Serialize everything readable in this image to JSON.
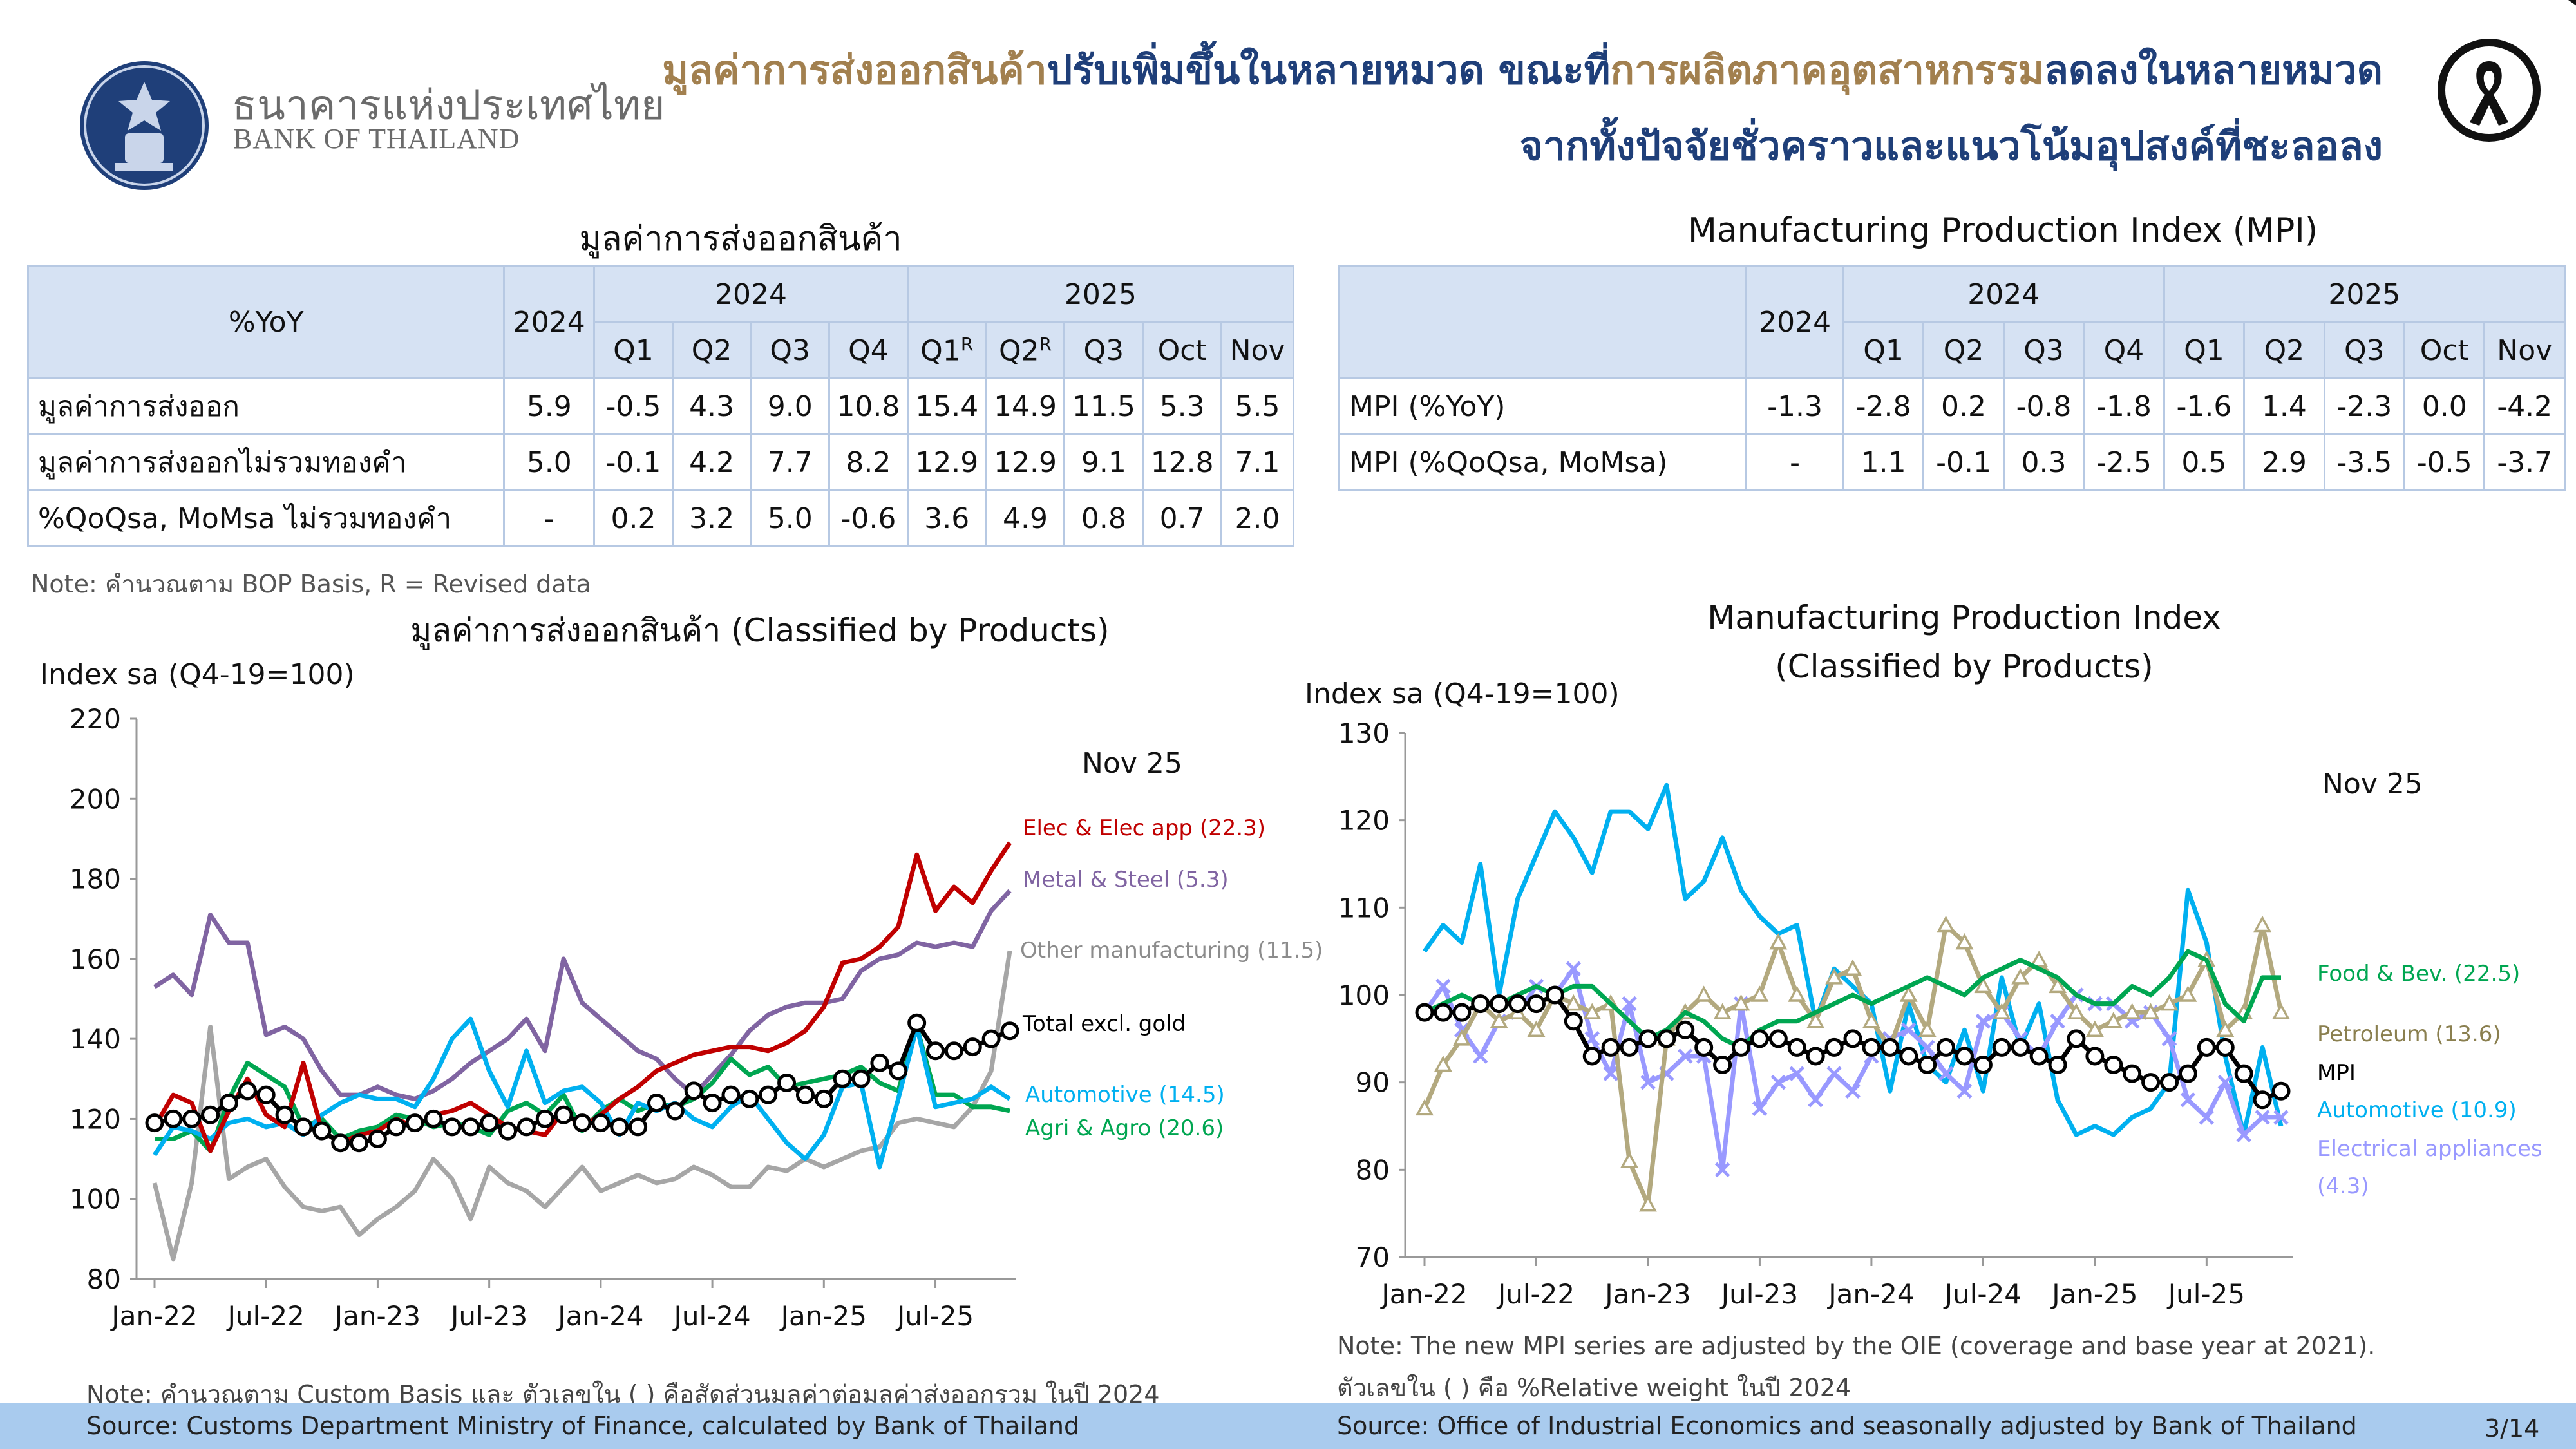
{
  "header": {
    "bank_name_th": "ธนาคารแห่งประเทศไทย",
    "bank_name_en": "BANK OF THAILAND",
    "title_line1_parts": [
      "มูลค่าการส่งออกสินค้า",
      "ปรับเพิ่มขึ้นในหลายหมวด ขณะที่",
      "การผลิตภาคอุตสาหกรรม",
      "ลดลงในหลายหมวด"
    ],
    "title_line2": "จากทั้งปัจจัยชั่วคราวและแนวโน้มอุปสงค์ที่ชะลอลง"
  },
  "export_table": {
    "title": "มูลค่าการส่งออกสินค้า",
    "corner": "%YoY",
    "year_col": "2024",
    "group_2024": "2024",
    "group_2025": "2025",
    "subheaders": [
      "Q1",
      "Q2",
      "Q3",
      "Q4",
      "Q1",
      "Q2",
      "Q3",
      "Oct",
      "Nov"
    ],
    "revised_mark": "R",
    "rows": [
      {
        "label": "มูลค่าการส่งออก",
        "values": [
          "5.9",
          "-0.5",
          "4.3",
          "9.0",
          "10.8",
          "15.4",
          "14.9",
          "11.5",
          "5.3",
          "5.5"
        ]
      },
      {
        "label": "มูลค่าการส่งออกไม่รวมทองคำ",
        "values": [
          "5.0",
          "-0.1",
          "4.2",
          "7.7",
          "8.2",
          "12.9",
          "12.9",
          "9.1",
          "12.8",
          "7.1"
        ]
      },
      {
        "label": "%QoQsa, MoMsa ไม่รวมทองคำ",
        "values": [
          "-",
          "0.2",
          "3.2",
          "5.0",
          "-0.6",
          "3.6",
          "4.9",
          "0.8",
          "0.7",
          "2.0"
        ]
      }
    ],
    "note": "Note: คำนวณตาม BOP Basis, R = Revised data"
  },
  "mpi_table": {
    "title": "Manufacturing Production Index (MPI)",
    "year_col": "2024",
    "group_2024": "2024",
    "group_2025": "2025",
    "subheaders": [
      "Q1",
      "Q2",
      "Q3",
      "Q4",
      "Q1",
      "Q2",
      "Q3",
      "Oct",
      "Nov"
    ],
    "rows": [
      {
        "label": "MPI (%YoY)",
        "values": [
          "-1.3",
          "-2.8",
          "0.2",
          "-0.8",
          "-1.8",
          "-1.6",
          "1.4",
          "-2.3",
          "0.0",
          "-4.2"
        ]
      },
      {
        "label": "MPI (%QoQsa, MoMsa)",
        "values": [
          "-",
          "1.1",
          "-0.1",
          "0.3",
          "-2.5",
          "0.5",
          "2.9",
          "-3.5",
          "-0.5",
          "-3.7"
        ]
      }
    ]
  },
  "chart_data": [
    {
      "type": "line",
      "title": "มูลค่าการส่งออกสินค้า (Classified by Products)",
      "ylabel": "Index sa (Q4-19=100)",
      "ylim": [
        80,
        220
      ],
      "yticks": [
        80,
        100,
        120,
        140,
        160,
        180,
        200,
        220
      ],
      "xticks": [
        "Jan-22",
        "Jul-22",
        "Jan-23",
        "Jul-23",
        "Jan-24",
        "Jul-24",
        "Jan-25",
        "Jul-25"
      ],
      "annotation": "Nov 25",
      "n_points": 47,
      "series": [
        {
          "name": "Elec & Elec app (22.3)",
          "color": "#c00000",
          "marker": "none",
          "values": [
            118,
            126,
            124,
            112,
            122,
            130,
            121,
            118,
            134,
            117,
            114,
            116,
            117,
            120,
            118,
            121,
            122,
            124,
            121,
            118,
            117,
            116,
            122,
            118,
            121,
            125,
            128,
            132,
            134,
            136,
            137,
            138,
            138,
            137,
            139,
            142,
            148,
            159,
            160,
            163,
            168,
            186,
            172,
            178,
            174,
            182,
            189
          ]
        },
        {
          "name": "Metal & Steel (5.3)",
          "color": "#8064a2",
          "marker": "none",
          "values": [
            153,
            156,
            151,
            171,
            164,
            164,
            141,
            143,
            140,
            132,
            126,
            126,
            128,
            126,
            125,
            127,
            130,
            134,
            137,
            140,
            145,
            137,
            160,
            149,
            145,
            141,
            137,
            135,
            130,
            126,
            131,
            136,
            142,
            146,
            148,
            149,
            149,
            150,
            157,
            160,
            161,
            164,
            163,
            164,
            163,
            172,
            177
          ]
        },
        {
          "name": "Other manufacturing (11.5)",
          "color": "#a6a6a6",
          "marker": "none",
          "values": [
            104,
            85,
            104,
            143,
            105,
            108,
            110,
            103,
            98,
            97,
            98,
            91,
            95,
            98,
            102,
            110,
            105,
            95,
            108,
            104,
            102,
            98,
            103,
            108,
            102,
            104,
            106,
            104,
            105,
            108,
            106,
            103,
            103,
            108,
            107,
            110,
            108,
            110,
            112,
            113,
            119,
            120,
            119,
            118,
            123,
            132,
            162
          ]
        },
        {
          "name": "Automotive (14.5)",
          "color": "#00b0f0",
          "marker": "none",
          "values": [
            111,
            118,
            117,
            115,
            119,
            120,
            118,
            119,
            116,
            121,
            124,
            126,
            125,
            125,
            123,
            130,
            140,
            145,
            132,
            123,
            137,
            124,
            127,
            128,
            124,
            116,
            124,
            122,
            124,
            120,
            118,
            123,
            126,
            120,
            114,
            110,
            116,
            128,
            129,
            108,
            125,
            143,
            123,
            124,
            125,
            128,
            125
          ]
        },
        {
          "name": "Agri & Agro (20.6)",
          "color": "#00a651",
          "marker": "none",
          "values": [
            115,
            115,
            117,
            112,
            125,
            134,
            131,
            128,
            118,
            120,
            115,
            117,
            118,
            121,
            120,
            118,
            119,
            118,
            116,
            122,
            124,
            121,
            126,
            117,
            122,
            125,
            122,
            124,
            123,
            125,
            129,
            135,
            131,
            133,
            128,
            129,
            130,
            131,
            133,
            129,
            127,
            143,
            126,
            126,
            123,
            123,
            122
          ]
        },
        {
          "name": "Total excl. gold",
          "color": "#000000",
          "marker": "circle",
          "values": [
            119,
            120,
            120,
            121,
            124,
            127,
            126,
            121,
            118,
            117,
            114,
            114,
            115,
            118,
            119,
            120,
            118,
            118,
            119,
            117,
            118,
            120,
            121,
            119,
            119,
            118,
            118,
            124,
            122,
            127,
            124,
            126,
            125,
            126,
            129,
            126,
            125,
            130,
            130,
            134,
            132,
            144,
            137,
            137,
            138,
            140,
            142
          ]
        }
      ]
    },
    {
      "type": "line",
      "title": "Manufacturing Production Index (Classified by Products)",
      "ylabel": "Index sa (Q4-19=100)",
      "ylim": [
        70,
        130
      ],
      "yticks": [
        70,
        80,
        90,
        100,
        110,
        120,
        130
      ],
      "xticks": [
        "Jan-22",
        "Jul-22",
        "Jan-23",
        "Jul-23",
        "Jan-24",
        "Jul-24",
        "Jan-25",
        "Jul-25"
      ],
      "annotation": "Nov 25",
      "n_points": 47,
      "series": [
        {
          "name": "Food & Bev. (22.5)",
          "color": "#00a651",
          "marker": "none",
          "values": [
            98,
            99,
            100,
            99,
            99,
            100,
            101,
            100,
            101,
            101,
            99,
            97,
            95,
            96,
            98,
            97,
            95,
            94,
            96,
            97,
            97,
            98,
            99,
            100,
            99,
            100,
            101,
            102,
            101,
            100,
            102,
            103,
            104,
            103,
            102,
            100,
            99,
            99,
            101,
            100,
            102,
            105,
            104,
            99,
            97,
            102,
            102
          ]
        },
        {
          "name": "Petroleum (13.6)",
          "color": "#b3a97f",
          "marker": "triangle",
          "values": [
            87,
            92,
            95,
            99,
            97,
            98,
            96,
            100,
            99,
            98,
            99,
            81,
            76,
            95,
            98,
            100,
            98,
            99,
            100,
            106,
            100,
            97,
            102,
            103,
            97,
            94,
            100,
            96,
            108,
            106,
            101,
            98,
            102,
            104,
            101,
            98,
            96,
            97,
            98,
            98,
            99,
            100,
            104,
            96,
            98,
            108,
            98
          ]
        },
        {
          "name": "MPI",
          "color": "#000000",
          "marker": "circle",
          "values": [
            98,
            98,
            98,
            99,
            99,
            99,
            99,
            100,
            97,
            93,
            94,
            94,
            95,
            95,
            96,
            94,
            92,
            94,
            95,
            95,
            94,
            93,
            94,
            95,
            94,
            94,
            93,
            92,
            94,
            93,
            92,
            94,
            94,
            93,
            92,
            95,
            93,
            92,
            91,
            90,
            90,
            91,
            94,
            94,
            91,
            88,
            89
          ]
        },
        {
          "name": "Automotive (10.9)",
          "color": "#00b0f0",
          "marker": "none",
          "values": [
            105,
            108,
            106,
            115,
            100,
            111,
            116,
            121,
            118,
            114,
            121,
            121,
            119,
            124,
            111,
            113,
            118,
            112,
            109,
            107,
            108,
            97,
            103,
            101,
            99,
            89,
            99,
            92,
            90,
            96,
            89,
            102,
            94,
            99,
            88,
            84,
            85,
            84,
            86,
            87,
            90,
            112,
            106,
            93,
            84,
            94,
            85
          ]
        },
        {
          "name": "Electrical appliances (4.3)",
          "color": "#9999ff",
          "marker": "x",
          "values": [
            98,
            101,
            96,
            93,
            97,
            98,
            101,
            100,
            103,
            95,
            91,
            99,
            90,
            91,
            93,
            93,
            80,
            99,
            87,
            90,
            91,
            88,
            91,
            89,
            93,
            95,
            96,
            94,
            91,
            89,
            97,
            98,
            95,
            93,
            97,
            100,
            99,
            99,
            97,
            98,
            95,
            88,
            86,
            90,
            84,
            86,
            86
          ]
        }
      ]
    }
  ],
  "chart_labels": {
    "export": {
      "elec": "Elec & Elec app (22.3)",
      "metal": "Metal & Steel (5.3)",
      "other": "Other manufacturing (11.5)",
      "total": "Total excl. gold",
      "auto": "Automotive (14.5)",
      "agri": "Agri & Agro (20.6)"
    },
    "mpi": {
      "food": "Food & Bev. (22.5)",
      "petro": "Petroleum (13.6)",
      "mpi": "MPI",
      "auto": "Automotive (10.9)",
      "elec_line1": "Electrical appliances",
      "elec_line2": "(4.3)"
    }
  },
  "notes": {
    "export_chart": "Note: คำนวณตาม Custom Basis และ ตัวเลขใน ( ) คือสัดส่วนมูลค่าต่อมูลค่าส่งออกรวม ในปี 2024",
    "mpi_chart_1": "Note: The new MPI series are adjusted by the OIE (coverage and base year at 2021).",
    "mpi_chart_2": "ตัวเลขใน ( ) คือ %Relative weight ในปี 2024"
  },
  "footer": {
    "source_left": "Source: Customs Department Ministry of Finance, calculated by Bank of Thailand",
    "source_right": "Source: Office of Industrial Economics and seasonally adjusted by Bank of Thailand",
    "page": "3/14"
  },
  "colors": {
    "navy": "#1f3f79",
    "gold": "#a2804f",
    "table_header": "#d6e2f3",
    "table_border": "#b7c9e3",
    "footer": "#a9cbee"
  }
}
